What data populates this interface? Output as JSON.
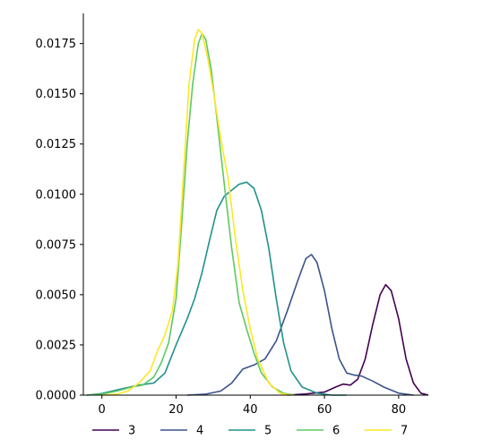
{
  "chart_data": {
    "type": "line",
    "title": "",
    "xlabel": "",
    "ylabel": "",
    "xlim": [
      -5,
      88
    ],
    "ylim": [
      0,
      0.019
    ],
    "x_ticks": [
      0,
      20,
      40,
      60,
      80
    ],
    "x_tick_labels": [
      "0",
      "20",
      "40",
      "60",
      "80"
    ],
    "y_ticks": [
      0,
      0.0025,
      0.005,
      0.0075,
      0.01,
      0.0125,
      0.015,
      0.0175
    ],
    "y_tick_labels": [
      "0.0000",
      "0.0025",
      "0.0050",
      "0.0075",
      "0.0100",
      "0.0125",
      "0.0150",
      "0.0175"
    ],
    "grid": false,
    "legend": {
      "placement": "bottom",
      "columns": 5
    },
    "series": [
      {
        "name": "3",
        "color": "#440154",
        "points": [
          [
            50,
            0
          ],
          [
            55,
            6e-05
          ],
          [
            60,
            0.00015
          ],
          [
            63,
            0.0004
          ],
          [
            65,
            0.00055
          ],
          [
            67,
            0.0005
          ],
          [
            69,
            0.0008
          ],
          [
            71,
            0.0018
          ],
          [
            73,
            0.0035
          ],
          [
            75,
            0.005
          ],
          [
            76.5,
            0.0055
          ],
          [
            78,
            0.0052
          ],
          [
            80,
            0.0038
          ],
          [
            82,
            0.0018
          ],
          [
            84,
            0.0006
          ],
          [
            86,
            0.0001
          ],
          [
            88,
            0
          ]
        ]
      },
      {
        "name": "4",
        "color": "#3b528b",
        "points": [
          [
            23,
            0
          ],
          [
            28,
            5e-05
          ],
          [
            32,
            0.0002
          ],
          [
            35,
            0.0006
          ],
          [
            38,
            0.0013
          ],
          [
            41,
            0.0015
          ],
          [
            44,
            0.0018
          ],
          [
            47,
            0.0027
          ],
          [
            50,
            0.0042
          ],
          [
            53,
            0.0058
          ],
          [
            55,
            0.0068
          ],
          [
            56.5,
            0.007
          ],
          [
            58,
            0.0066
          ],
          [
            60,
            0.0052
          ],
          [
            62,
            0.0033
          ],
          [
            64,
            0.0018
          ],
          [
            66,
            0.0011
          ],
          [
            68,
            0.001
          ],
          [
            70,
            0.00095
          ],
          [
            73,
            0.0007
          ],
          [
            76,
            0.0004
          ],
          [
            80,
            0.0001
          ],
          [
            84,
            0
          ]
        ]
      },
      {
        "name": "5",
        "color": "#21918c",
        "points": [
          [
            -4,
            0
          ],
          [
            0,
            8e-05
          ],
          [
            5,
            0.0003
          ],
          [
            10,
            0.0005
          ],
          [
            14,
            0.0006
          ],
          [
            17,
            0.0011
          ],
          [
            20,
            0.0025
          ],
          [
            23,
            0.0038
          ],
          [
            25,
            0.0048
          ],
          [
            27,
            0.0061
          ],
          [
            29,
            0.0077
          ],
          [
            31,
            0.0092
          ],
          [
            33,
            0.0099
          ],
          [
            35,
            0.0102
          ],
          [
            37,
            0.0105
          ],
          [
            39,
            0.0106
          ],
          [
            41,
            0.0103
          ],
          [
            43,
            0.0092
          ],
          [
            45,
            0.0073
          ],
          [
            47,
            0.0048
          ],
          [
            49,
            0.0026
          ],
          [
            51,
            0.0012
          ],
          [
            54,
            0.0004
          ],
          [
            58,
            0.0001
          ],
          [
            62,
            0
          ],
          [
            66,
            0
          ]
        ]
      },
      {
        "name": "6",
        "color": "#5ec962",
        "points": [
          [
            -4,
            0
          ],
          [
            0,
            5e-05
          ],
          [
            4,
            0.0002
          ],
          [
            8,
            0.0004
          ],
          [
            11,
            0.0005
          ],
          [
            14,
            0.0009
          ],
          [
            16,
            0.0016
          ],
          [
            18,
            0.0026
          ],
          [
            20,
            0.0048
          ],
          [
            21.5,
            0.0085
          ],
          [
            23,
            0.0125
          ],
          [
            24.5,
            0.0155
          ],
          [
            26,
            0.0175
          ],
          [
            27,
            0.018
          ],
          [
            28,
            0.0177
          ],
          [
            29.5,
            0.0162
          ],
          [
            31,
            0.0138
          ],
          [
            33,
            0.0105
          ],
          [
            35,
            0.0073
          ],
          [
            37,
            0.0046
          ],
          [
            39,
            0.0033
          ],
          [
            41,
            0.0021
          ],
          [
            43,
            0.0011
          ],
          [
            46,
            0.0004
          ],
          [
            49,
            0.0001
          ],
          [
            52,
            0
          ]
        ]
      },
      {
        "name": "7",
        "color": "#fde725",
        "points": [
          [
            0,
            0
          ],
          [
            4,
            5e-05
          ],
          [
            7,
            0.0002
          ],
          [
            10,
            0.0006
          ],
          [
            13,
            0.0012
          ],
          [
            15,
            0.0022
          ],
          [
            17,
            0.003
          ],
          [
            19,
            0.0042
          ],
          [
            20.5,
            0.0065
          ],
          [
            22,
            0.011
          ],
          [
            23.5,
            0.0155
          ],
          [
            25,
            0.0177
          ],
          [
            26,
            0.0182
          ],
          [
            27,
            0.018
          ],
          [
            28.5,
            0.0168
          ],
          [
            30,
            0.0152
          ],
          [
            32,
            0.0128
          ],
          [
            34,
            0.0108
          ],
          [
            36,
            0.0078
          ],
          [
            38,
            0.0052
          ],
          [
            40,
            0.0033
          ],
          [
            42,
            0.0018
          ],
          [
            45,
            0.0006
          ],
          [
            48,
            0.0001
          ],
          [
            51,
            0
          ]
        ]
      }
    ]
  }
}
